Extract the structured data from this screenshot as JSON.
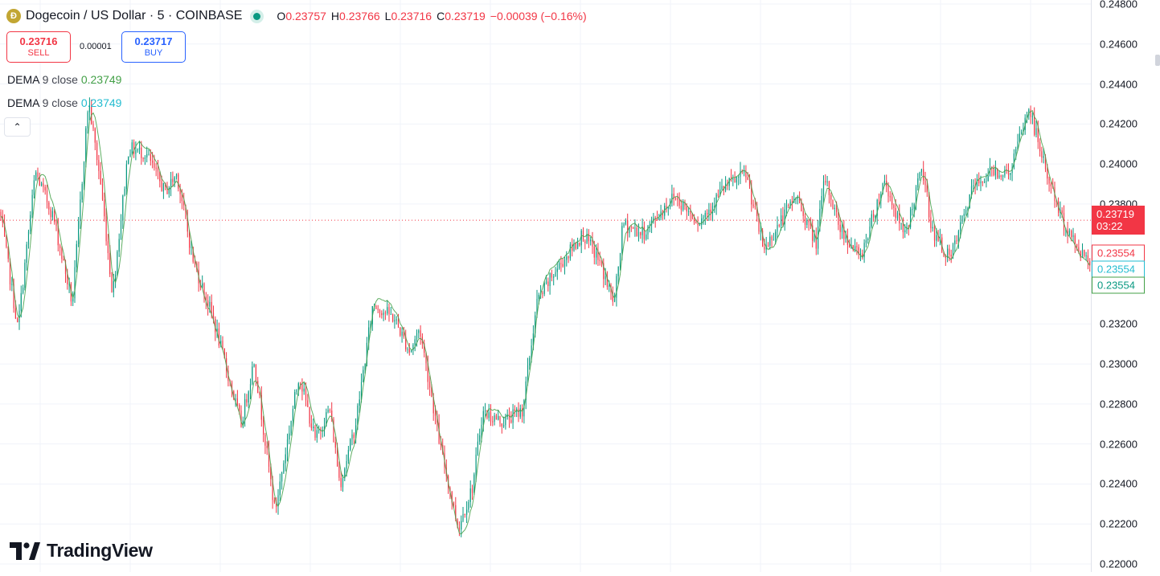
{
  "header": {
    "symbol_title": "Dogecoin / US Dollar · 5 · COINBASE",
    "icon": "dogecoin-coin-icon",
    "ohlc": {
      "open_key": "O",
      "open": "0.23757",
      "high_key": "H",
      "high": "0.23766",
      "low_key": "L",
      "low": "0.23716",
      "close_key": "C",
      "close": "0.23719",
      "change": "−0.00039 (−0.16%)"
    }
  },
  "trade": {
    "sell_price": "0.23716",
    "sell_label": "SELL",
    "buy_price": "0.23717",
    "buy_label": "BUY",
    "spread": "0.00001"
  },
  "legend": [
    {
      "name": "DEMA",
      "params": "9 close",
      "value": "0.23749",
      "color": "#43a047"
    },
    {
      "name": "DEMA",
      "params": "9 close",
      "value": "0.23749",
      "color": "#22bcd0"
    }
  ],
  "axis": {
    "ticks": [
      "0.24800",
      "0.24600",
      "0.24400",
      "0.24200",
      "0.24000",
      "0.23800",
      "0.23200",
      "0.23000",
      "0.22800",
      "0.22600",
      "0.22400",
      "0.22200",
      "0.22000"
    ],
    "last_price": "0.23719",
    "countdown": "03:22",
    "dema_red": "0.23554",
    "dema_teal": "0.23554",
    "dema_green": "0.23554"
  },
  "branding": {
    "logo_text": "TradingView"
  },
  "colors": {
    "up": "#089981",
    "down": "#f23645",
    "grid": "#f0f3fa",
    "dema": "#43a047"
  },
  "chart_data": {
    "type": "candlestick",
    "ylim": [
      0.2196,
      0.2482
    ],
    "last_price_value": 0.23719,
    "dema_label_value": 0.23554,
    "close_path": [
      {
        "x": 0,
        "y": 0.2376
      },
      {
        "x": 22,
        "y": 0.2318
      },
      {
        "x": 44,
        "y": 0.2396
      },
      {
        "x": 66,
        "y": 0.2374
      },
      {
        "x": 90,
        "y": 0.233
      },
      {
        "x": 110,
        "y": 0.2432
      },
      {
        "x": 125,
        "y": 0.2391
      },
      {
        "x": 140,
        "y": 0.2335
      },
      {
        "x": 160,
        "y": 0.2408
      },
      {
        "x": 182,
        "y": 0.2405
      },
      {
        "x": 205,
        "y": 0.2386
      },
      {
        "x": 220,
        "y": 0.2395
      },
      {
        "x": 240,
        "y": 0.2352
      },
      {
        "x": 265,
        "y": 0.2323
      },
      {
        "x": 280,
        "y": 0.23
      },
      {
        "x": 300,
        "y": 0.227
      },
      {
        "x": 316,
        "y": 0.2302
      },
      {
        "x": 342,
        "y": 0.2226
      },
      {
        "x": 372,
        "y": 0.2295
      },
      {
        "x": 392,
        "y": 0.2262
      },
      {
        "x": 410,
        "y": 0.2278
      },
      {
        "x": 423,
        "y": 0.224
      },
      {
        "x": 442,
        "y": 0.2269
      },
      {
        "x": 464,
        "y": 0.233
      },
      {
        "x": 490,
        "y": 0.2323
      },
      {
        "x": 510,
        "y": 0.2306
      },
      {
        "x": 522,
        "y": 0.2318
      },
      {
        "x": 548,
        "y": 0.2258
      },
      {
        "x": 570,
        "y": 0.2218
      },
      {
        "x": 588,
        "y": 0.2239
      },
      {
        "x": 600,
        "y": 0.2276
      },
      {
        "x": 625,
        "y": 0.2271
      },
      {
        "x": 650,
        "y": 0.2277
      },
      {
        "x": 668,
        "y": 0.2331
      },
      {
        "x": 690,
        "y": 0.2346
      },
      {
        "x": 725,
        "y": 0.2365
      },
      {
        "x": 745,
        "y": 0.2352
      },
      {
        "x": 764,
        "y": 0.233
      },
      {
        "x": 775,
        "y": 0.237
      },
      {
        "x": 800,
        "y": 0.2365
      },
      {
        "x": 838,
        "y": 0.2384
      },
      {
        "x": 870,
        "y": 0.2371
      },
      {
        "x": 900,
        "y": 0.2388
      },
      {
        "x": 928,
        "y": 0.2395
      },
      {
        "x": 950,
        "y": 0.2357
      },
      {
        "x": 990,
        "y": 0.2384
      },
      {
        "x": 1015,
        "y": 0.236
      },
      {
        "x": 1026,
        "y": 0.2393
      },
      {
        "x": 1045,
        "y": 0.2368
      },
      {
        "x": 1070,
        "y": 0.2353
      },
      {
        "x": 1100,
        "y": 0.2392
      },
      {
        "x": 1125,
        "y": 0.2363
      },
      {
        "x": 1147,
        "y": 0.2398
      },
      {
        "x": 1160,
        "y": 0.2366
      },
      {
        "x": 1182,
        "y": 0.2352
      },
      {
        "x": 1210,
        "y": 0.2388
      },
      {
        "x": 1235,
        "y": 0.2397
      },
      {
        "x": 1255,
        "y": 0.2395
      },
      {
        "x": 1280,
        "y": 0.2428
      },
      {
        "x": 1300,
        "y": 0.2398
      },
      {
        "x": 1320,
        "y": 0.2373
      },
      {
        "x": 1340,
        "y": 0.2358
      },
      {
        "x": 1356,
        "y": 0.2352
      }
    ]
  }
}
